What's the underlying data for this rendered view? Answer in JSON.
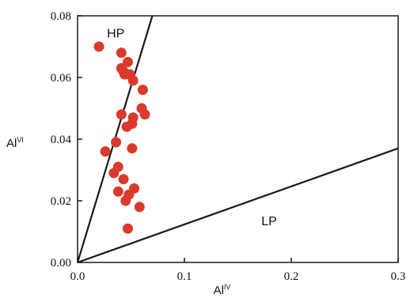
{
  "chart_data": {
    "type": "scatter",
    "title": "",
    "xlabel": {
      "base": "Al",
      "sup": "IV"
    },
    "ylabel": {
      "base": "Al",
      "sup": "VI"
    },
    "xlim": [
      0.0,
      0.3
    ],
    "ylim": [
      0.0,
      0.08
    ],
    "xticks": [
      0.0,
      0.1,
      0.2,
      0.3
    ],
    "xtick_labels": [
      "0.0",
      "0.1",
      "0.2",
      "0.3"
    ],
    "yticks": [
      0.0,
      0.02,
      0.04,
      0.06,
      0.08
    ],
    "ytick_labels": [
      "0.00",
      "0.02",
      "0.04",
      "0.06",
      "0.08"
    ],
    "grid": false,
    "marker_color": "#d93a2b",
    "line_color": "#1a1a1a",
    "points": {
      "x": [
        0.02,
        0.041,
        0.047,
        0.043,
        0.049,
        0.041,
        0.044,
        0.052,
        0.061,
        0.06,
        0.063,
        0.041,
        0.052,
        0.046,
        0.051,
        0.036,
        0.026,
        0.051,
        0.038,
        0.034,
        0.043,
        0.038,
        0.048,
        0.053,
        0.045,
        0.058,
        0.047
      ],
      "y": [
        0.07,
        0.068,
        0.065,
        0.062,
        0.061,
        0.063,
        0.061,
        0.059,
        0.056,
        0.05,
        0.048,
        0.048,
        0.047,
        0.044,
        0.045,
        0.039,
        0.036,
        0.037,
        0.031,
        0.029,
        0.027,
        0.023,
        0.022,
        0.024,
        0.02,
        0.018,
        0.011
      ]
    },
    "boundary_lines": [
      {
        "x": [
          0.0,
          0.07
        ],
        "y": [
          0.0,
          0.08
        ]
      },
      {
        "x": [
          0.0,
          0.3
        ],
        "y": [
          0.0,
          0.037
        ]
      }
    ],
    "annotations": [
      {
        "text": "HP",
        "x": 0.0275,
        "y": 0.073
      },
      {
        "text": "LP",
        "x": 0.172,
        "y": 0.012
      }
    ]
  }
}
